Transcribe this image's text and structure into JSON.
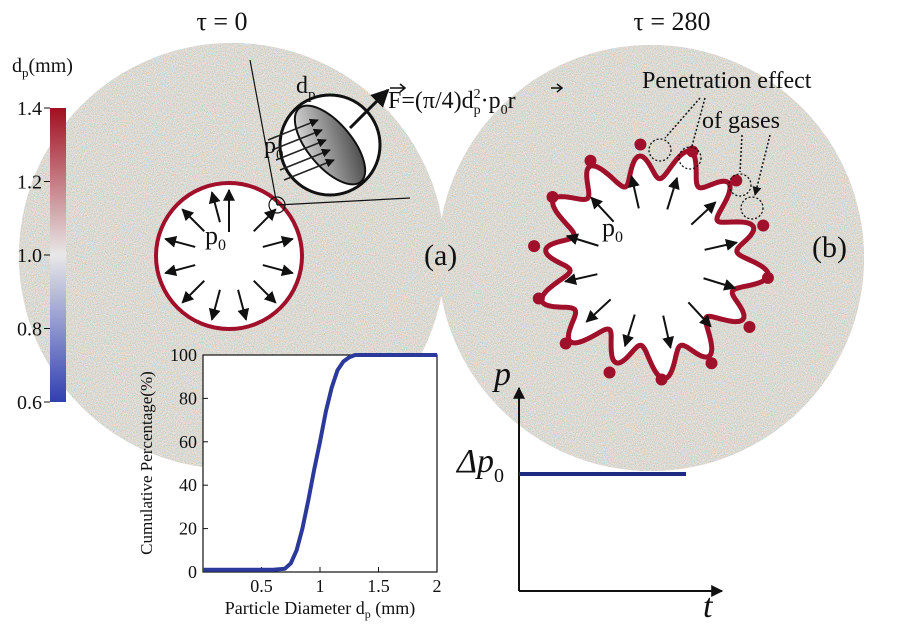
{
  "headings": {
    "left": "τ = 0",
    "right": "τ = 280"
  },
  "colorbar": {
    "label": {
      "base": "d",
      "sub": "p",
      "after": "(mm)"
    },
    "range": [
      0.6,
      1.4
    ],
    "colors": [
      "#3040b0",
      "#e8e8e8",
      "#a01020"
    ],
    "ticks": [
      {
        "value": 1.4,
        "label": "1.4"
      },
      {
        "value": 1.2,
        "label": "1.2"
      },
      {
        "value": 1.0,
        "label": "1.0"
      },
      {
        "value": 0.8,
        "label": "0.8"
      },
      {
        "value": 0.6,
        "label": "0.6"
      }
    ]
  },
  "panel_a": {
    "label": "(a)",
    "hole_pressure": {
      "base": "p",
      "sub": "0"
    },
    "inset_pressure": {
      "base": "p",
      "sub": "0"
    },
    "diameter": {
      "base": "d",
      "sub": "p"
    },
    "force": [
      "F",
      "=(π/4)d",
      "2",
      "p",
      "·p",
      "0",
      "r"
    ]
  },
  "panel_b": {
    "label": "(b)",
    "hole_pressure": {
      "base": "p",
      "sub": "0"
    },
    "annotation": [
      "Penetration effect",
      "of gases"
    ]
  },
  "schematic": {
    "y_label": "p",
    "x_label": "t",
    "level_label": {
      "base": "Δp",
      "sub": "0"
    }
  },
  "chart_data": {
    "type": "line",
    "xlabel": {
      "base": "Particle Diameter d",
      "sub": "p",
      "after": " (mm)"
    },
    "ylabel": "Cumulative Percentage(%)",
    "x": [
      0,
      0.5,
      0.6,
      0.7,
      0.75,
      0.8,
      0.85,
      0.9,
      0.95,
      1.0,
      1.05,
      1.1,
      1.15,
      1.2,
      1.25,
      1.3,
      1.5,
      2
    ],
    "values": [
      1,
      1,
      1,
      1.5,
      4,
      10,
      20,
      33,
      47,
      60,
      74,
      85,
      93,
      97,
      99,
      100,
      100,
      100
    ],
    "color": "#2b3a9a",
    "xlim": [
      0,
      2
    ],
    "ylim": [
      0,
      100
    ],
    "xticks": [
      0.5,
      1,
      1.5,
      2
    ],
    "yticks": [
      0,
      20,
      40,
      60,
      80,
      100
    ]
  }
}
